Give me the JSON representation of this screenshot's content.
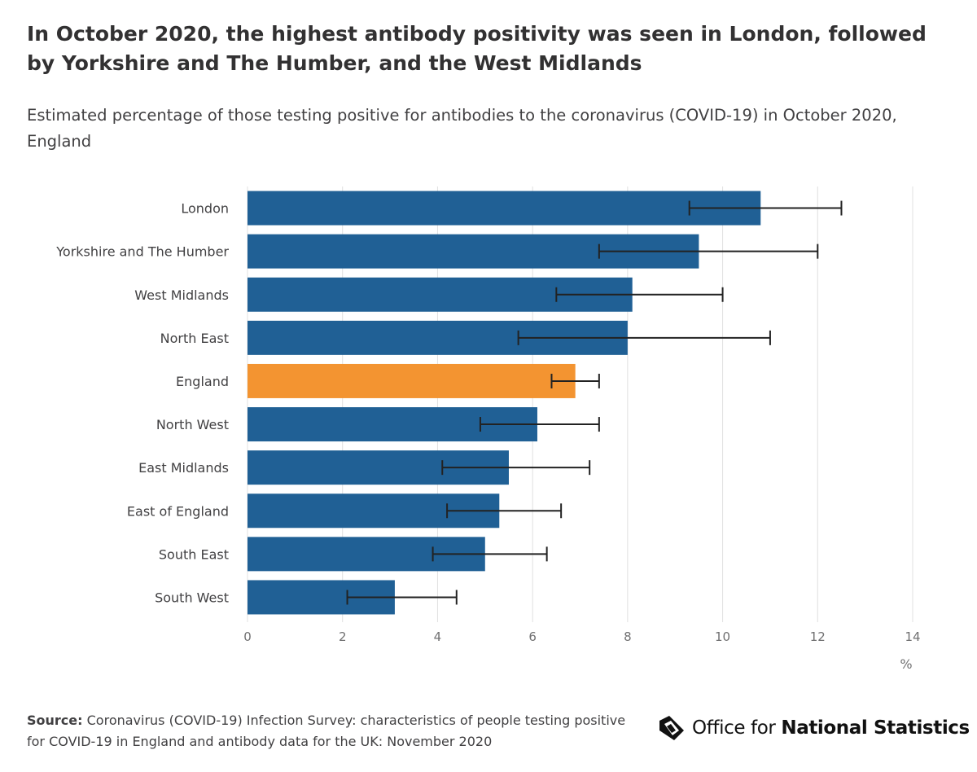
{
  "title": "In October 2020, the highest antibody positivity was seen in London, followed by Yorkshire and The Humber, and the West Midlands",
  "subtitle": "Estimated percentage of those testing positive for antibodies to the coronavirus (COVID-19) in October 2020, England",
  "chart_data": {
    "type": "bar",
    "orientation": "horizontal",
    "categories": [
      "London",
      "Yorkshire and The Humber",
      "West Midlands",
      "North East",
      "England",
      "North West",
      "East Midlands",
      "East of England",
      "South East",
      "South West"
    ],
    "values": [
      10.8,
      9.5,
      8.1,
      8.0,
      6.9,
      6.1,
      5.5,
      5.3,
      5.0,
      3.1
    ],
    "error_low": [
      9.3,
      7.4,
      6.5,
      5.7,
      6.4,
      4.9,
      4.1,
      4.2,
      3.9,
      2.1
    ],
    "error_high": [
      12.5,
      12.0,
      10.0,
      11.0,
      7.4,
      7.4,
      7.2,
      6.6,
      6.3,
      4.4
    ],
    "highlight": "England",
    "xlim": [
      0,
      14
    ],
    "xticks": [
      0,
      2,
      4,
      6,
      8,
      10,
      12,
      14
    ],
    "xlabel": "%",
    "grid": true,
    "colors": {
      "bar": "#206095",
      "highlight": "#F39431",
      "error_bar": "#222222",
      "grid": "#E0E0E0"
    }
  },
  "source": {
    "label": "Source:",
    "text": "Coronavirus (COVID-19) Infection Survey: characteristics of people testing positive for COVID-19 in England and antibody data for the UK: November 2020"
  },
  "logo": {
    "text_regular": "Office for",
    "text_bold": "National Statistics",
    "icon": "ons-logo-icon"
  }
}
